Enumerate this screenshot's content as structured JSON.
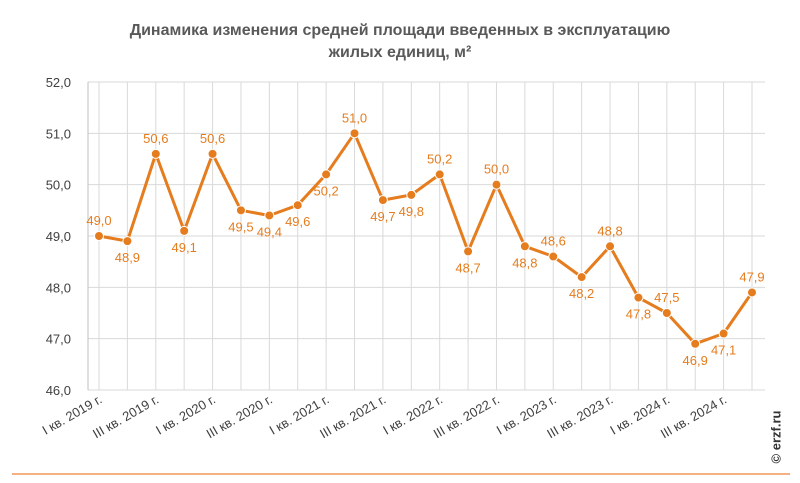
{
  "title_lines": [
    "Динамика изменения средней площади введенных в эксплуатацию",
    "жилых единиц, м²"
  ],
  "watermark": "© erzf.ru",
  "colors": {
    "series": "#E57C1E",
    "grid": "#D9D9D9",
    "axis_text": "#404040",
    "border": "#F4B183"
  },
  "chart_data": {
    "type": "line",
    "title": "Динамика изменения средней площади введенных в эксплуатацию жилых единиц, м²",
    "xlabel": "",
    "ylabel": "",
    "ylim": [
      46,
      52
    ],
    "yticks": [
      "46,0",
      "47,0",
      "48,0",
      "49,0",
      "50,0",
      "51,0",
      "52,0"
    ],
    "x_tick_labels": [
      "I кв. 2019 г.",
      "III кв. 2019 г.",
      "I кв. 2020 г.",
      "III кв. 2020 г.",
      "I кв. 2021 г.",
      "III кв. 2021 г.",
      "I кв. 2022 г.",
      "III кв. 2022 г.",
      "I кв. 2023 г.",
      "III кв. 2023 г.",
      "I кв. 2024 г.",
      "III кв. 2024 г."
    ],
    "x_tick_every": 2,
    "grid": true,
    "legend": "none",
    "series": [
      {
        "values": [
          49.0,
          48.9,
          50.6,
          49.1,
          50.6,
          49.5,
          49.4,
          49.6,
          50.2,
          51.0,
          49.7,
          49.8,
          50.2,
          48.7,
          50.0,
          48.8,
          48.6,
          48.2,
          48.8,
          47.8,
          47.5,
          46.9,
          47.1,
          47.9
        ],
        "labels": [
          "49,0",
          "48,9",
          "50,6",
          "49,1",
          "50,6",
          "49,5",
          "49,4",
          "49,6",
          "50,2",
          "51,0",
          "49,7",
          "49,8",
          "50,2",
          "48,7",
          "50,0",
          "48,8",
          "48,6",
          "48,2",
          "48,8",
          "47,8",
          "47,5",
          "46,9",
          "47,1",
          "47,9"
        ]
      }
    ]
  }
}
